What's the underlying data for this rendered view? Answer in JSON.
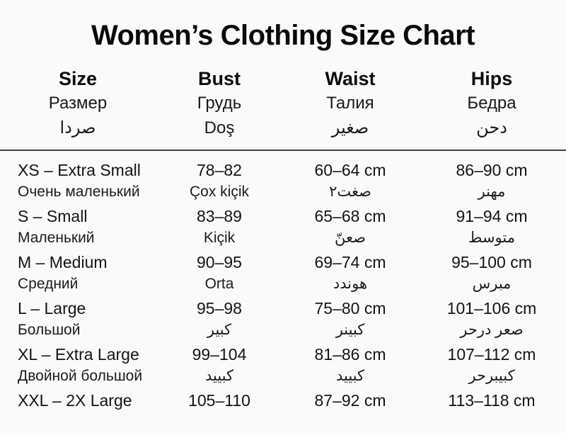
{
  "chart_data": {
    "type": "table",
    "title": "Women’s Clothing Size Chart",
    "columns": [
      {
        "en": "Size",
        "ru": "Размер",
        "alt": "صردا"
      },
      {
        "en": "Bust",
        "ru": "Грудь",
        "alt": "Doş"
      },
      {
        "en": "Waist",
        "ru": "Талия",
        "alt": "صغير"
      },
      {
        "en": "Hips",
        "ru": "Бедра",
        "alt": "دحن"
      }
    ],
    "rows": [
      {
        "size": "XS – Extra Small",
        "size_alt": "Очень маленький",
        "bust": "78–82",
        "bust_alt": "Çox kiçik",
        "waist": "60–64 cm",
        "waist_alt": "صغت٢",
        "hips": "86–90 cm",
        "hips_alt": "مهنر"
      },
      {
        "size": "S – Small",
        "size_alt": "Маленький",
        "bust": "83–89",
        "bust_alt": "Kiçik",
        "waist": "65–68 cm",
        "waist_alt": "صعنّ",
        "hips": "91–94 cm",
        "hips_alt": "متوسط"
      },
      {
        "size": "M – Medium",
        "size_alt": "Средний",
        "bust": "90–95",
        "bust_alt": "Orta",
        "waist": "69–74 cm",
        "waist_alt": "هوندد",
        "hips": "95–100 cm",
        "hips_alt": "مبرس"
      },
      {
        "size": "L – Large",
        "size_alt": "Большой",
        "bust": "95–98",
        "bust_alt": "كبير",
        "waist": "75–80 cm",
        "waist_alt": "كبينر",
        "hips": "101–106 cm",
        "hips_alt": "صعر درحر"
      },
      {
        "size": "XL – Extra Large",
        "size_alt": "Двойной большой",
        "bust": "99–104",
        "bust_alt": "كبييد",
        "waist": "81–86 cm",
        "waist_alt": "كبييد",
        "hips": "107–112 cm",
        "hips_alt": "كبيبرحر"
      },
      {
        "size": "XXL – 2X Large",
        "size_alt": "",
        "bust": "105–110",
        "bust_alt": "",
        "waist": "87–92 cm",
        "waist_alt": "",
        "hips": "113–118 cm",
        "hips_alt": ""
      }
    ],
    "colors": {
      "text": "#111111",
      "background": "#fafafa",
      "rule": "#3f3f3f"
    }
  }
}
